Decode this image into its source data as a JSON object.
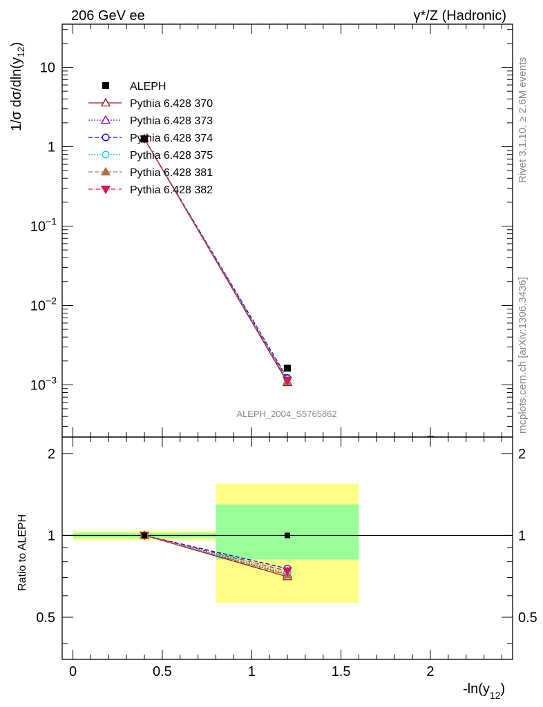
{
  "header": {
    "left_text": "206 GeV ee",
    "right_text": "γ*/Z (Hadronic)"
  },
  "side_texts": {
    "upper": "Rivet 3.1.10, ≥ 2.6M events",
    "lower": "mcplots.cern.ch [arXiv:1306.3436]"
  },
  "watermark": "ALEPH_2004_S5765862",
  "chart_data": [
    {
      "type": "scatter",
      "panel": "main",
      "title": "",
      "xlabel": "-ln(y12)",
      "ylabel": "1/σ dσ/dln(y12)",
      "ylabel_main": "1/σ  dσ/dln(y",
      "ylabel_sub": "12",
      "ylabel_close": ")",
      "xlabel_main": "-ln(y",
      "xlabel_sub": "12",
      "xlabel_close": ")",
      "xlim": [
        -0.06,
        2.46
      ],
      "ylim": [
        0.00022,
        35
      ],
      "yscale": "log",
      "yticks": [
        {
          "v": 0.001,
          "base": "10",
          "exp": "−3"
        },
        {
          "v": 0.01,
          "base": "10",
          "exp": "−2"
        },
        {
          "v": 0.1,
          "base": "10",
          "exp": "−1"
        },
        {
          "v": 1,
          "base": "1",
          "exp": ""
        },
        {
          "v": 10,
          "base": "10",
          "exp": ""
        }
      ],
      "legend_position": "top-left",
      "data_series": {
        "name": "ALEPH",
        "x": [
          0.4,
          1.2,
          2.0
        ],
        "y": [
          1.25,
          0.00162,
          0.000205
        ]
      },
      "series": [
        {
          "name": "Pythia 6.428 370",
          "color": "#8b1a1a",
          "dash": "",
          "marker": "triangle-open",
          "x": [
            0.4,
            1.2
          ],
          "y": [
            1.26,
            0.00107
          ]
        },
        {
          "name": "Pythia 6.428 373",
          "color": "#9400d3",
          "dash": "2,2",
          "marker": "triangle-open",
          "x": [
            0.4,
            1.2
          ],
          "y": [
            1.26,
            0.0011
          ]
        },
        {
          "name": "Pythia 6.428 374",
          "color": "#0000dd",
          "dash": "6,3",
          "marker": "circle-open",
          "x": [
            0.4,
            1.2
          ],
          "y": [
            1.26,
            0.00122
          ]
        },
        {
          "name": "Pythia 6.428 375",
          "color": "#00cccc",
          "dash": "2,2",
          "marker": "circle-open",
          "x": [
            0.4,
            1.2
          ],
          "y": [
            1.26,
            0.00118
          ]
        },
        {
          "name": "Pythia 6.428 381",
          "color": "#b07040",
          "dash": "6,3",
          "marker": "triangle-filled",
          "x": [
            0.4,
            1.2
          ],
          "y": [
            1.26,
            0.0011
          ]
        },
        {
          "name": "Pythia 6.428 382",
          "color": "#dd1155",
          "dash": "6,2,1,2",
          "marker": "triangle-down-filled",
          "x": [
            0.4,
            1.2
          ],
          "y": [
            1.26,
            0.00114
          ]
        }
      ]
    },
    {
      "type": "scatter",
      "panel": "ratio",
      "title": "",
      "xlabel": "-ln(y12)",
      "ylabel": "Ratio to ALEPH",
      "xlim": [
        -0.06,
        2.46
      ],
      "ylim": [
        0.35,
        2.3
      ],
      "yscale": "log",
      "xticks": [
        0,
        0.5,
        1,
        1.5,
        2
      ],
      "xticklabels": [
        "0",
        "0.5",
        "1",
        "1.5",
        "2"
      ],
      "yticks": [
        0.5,
        1,
        2
      ],
      "yticklabels": [
        "0.5",
        "1",
        "2"
      ],
      "bands": [
        {
          "x": [
            0.0,
            0.8
          ],
          "yellow": [
            0.96,
            1.04
          ],
          "green": [
            0.98,
            1.02
          ]
        },
        {
          "x": [
            0.8,
            1.6
          ],
          "yellow": [
            0.565,
            1.55
          ],
          "green": [
            0.815,
            1.3
          ]
        }
      ],
      "series": [
        {
          "name": "Pythia 6.428 370",
          "x": [
            0.4,
            1.2
          ],
          "y": [
            1.0,
            0.705
          ]
        },
        {
          "name": "Pythia 6.428 373",
          "x": [
            0.4,
            1.2
          ],
          "y": [
            1.0,
            0.72
          ]
        },
        {
          "name": "Pythia 6.428 374",
          "x": [
            0.4,
            1.2
          ],
          "y": [
            1.0,
            0.755
          ]
        },
        {
          "name": "Pythia 6.428 375",
          "x": [
            0.4,
            1.2
          ],
          "y": [
            1.0,
            0.73
          ]
        },
        {
          "name": "Pythia 6.428 381",
          "x": [
            0.4,
            1.2
          ],
          "y": [
            1.0,
            0.715
          ]
        },
        {
          "name": "Pythia 6.428 382",
          "x": [
            0.4,
            1.2
          ],
          "y": [
            1.0,
            0.74
          ]
        }
      ]
    }
  ]
}
